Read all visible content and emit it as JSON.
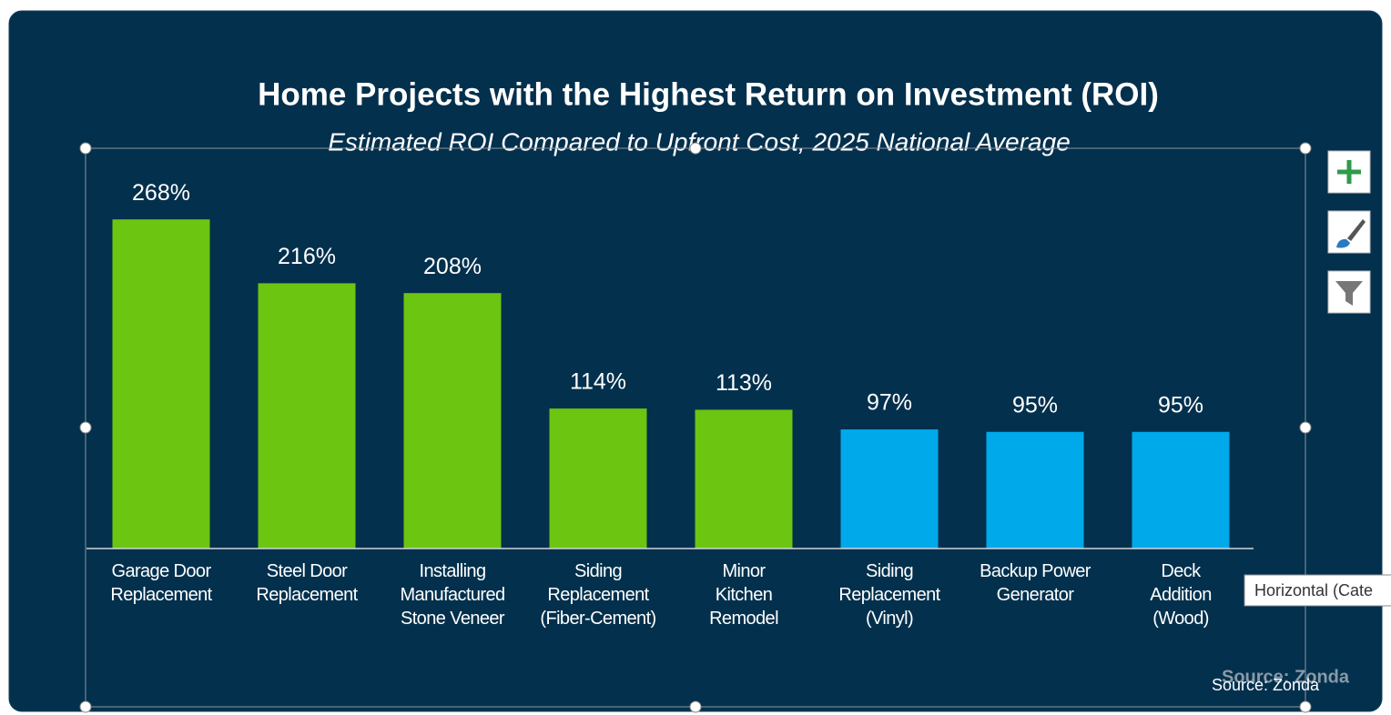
{
  "chart_data": {
    "type": "bar",
    "title": "Home Projects with the Highest Return on Investment (ROI)",
    "subtitle": "Estimated ROI Compared to Upfront Cost, 2025 National Average",
    "categories": [
      "Garage Door\nReplacement",
      "Steel Door\nReplacement",
      "Installing\nManufactured\nStone Veneer",
      "Siding\nReplacement\n(Fiber-Cement)",
      "Minor\nKitchen\nRemodel",
      "Siding\nReplacement\n(Vinyl)",
      "Backup Power\nGenerator",
      "Deck\nAddition\n(Wood)"
    ],
    "values": [
      268,
      216,
      208,
      114,
      113,
      97,
      95,
      95
    ],
    "value_labels": [
      "268%",
      "216%",
      "208%",
      "114%",
      "113%",
      "97%",
      "95%",
      "95%"
    ],
    "colors": [
      "#6cc510",
      "#6cc510",
      "#6cc510",
      "#6cc510",
      "#6cc510",
      "#00a9e9",
      "#00a9e9",
      "#00a9e9"
    ],
    "ylim": [
      0,
      300
    ],
    "source": "Source: Zonda",
    "tooltip": "Horizontal (Cate"
  }
}
